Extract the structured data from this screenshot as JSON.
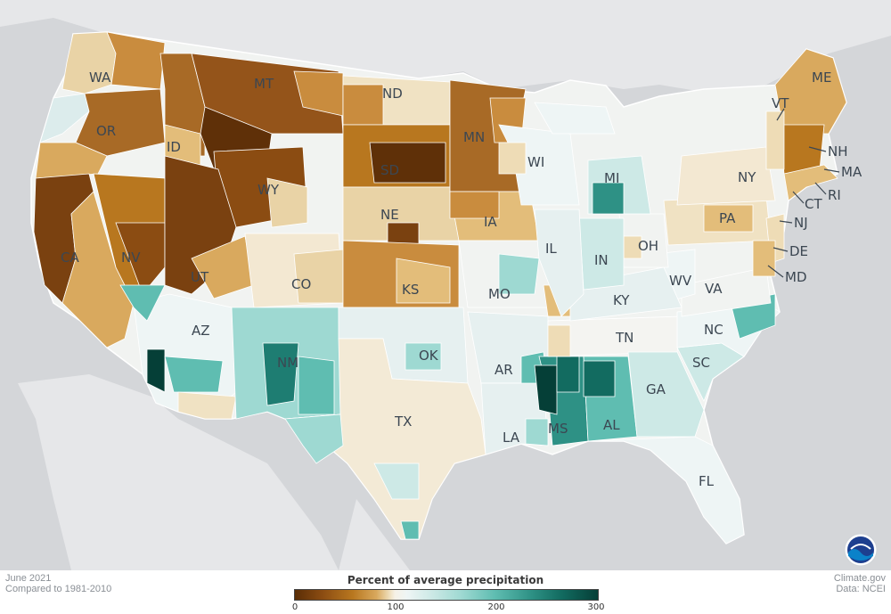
{
  "map": {
    "title": "Percent of average precipitation",
    "period": "June 2021",
    "baseline": "Compared to 1981-2010",
    "credit_site": "Climate.gov",
    "credit_data": "Data: NCEI",
    "legend": {
      "ticks": [
        "0",
        "100",
        "200",
        "300"
      ],
      "tick_values": [
        0,
        100,
        200,
        300
      ],
      "colors": {
        "very_dry": "#5a2d06",
        "dry": "#b8771f",
        "slightly_dry": "#eedcb6",
        "normal": "#f3f3f0",
        "slightly_wet": "#cde9e6",
        "wet": "#5fbdb1",
        "very_wet": "#053f37"
      }
    },
    "background_colors": {
      "land_outside": "#e6e7e9",
      "water": "#d4d6d9"
    },
    "states": {
      "WA": "WA",
      "OR": "OR",
      "CA": "CA",
      "ID": "ID",
      "NV": "NV",
      "MT": "MT",
      "WY": "WY",
      "UT": "UT",
      "AZ": "AZ",
      "CO": "CO",
      "NM": "NM",
      "ND": "ND",
      "SD": "SD",
      "NE": "NE",
      "KS": "KS",
      "OK": "OK",
      "TX": "TX",
      "MN": "MN",
      "IA": "IA",
      "MO": "MO",
      "AR": "AR",
      "LA": "LA",
      "WI": "WI",
      "IL": "IL",
      "MS": "MS",
      "MI": "MI",
      "IN": "IN",
      "KY": "KY",
      "TN": "TN",
      "AL": "AL",
      "OH": "OH",
      "GA": "GA",
      "FL": "FL",
      "SC": "SC",
      "NC": "NC",
      "VA": "VA",
      "WV": "WV",
      "PA": "PA",
      "NY": "NY",
      "VT": "VT",
      "NH": "NH",
      "ME": "ME",
      "MA": "MA",
      "RI": "RI",
      "CT": "CT",
      "NJ": "NJ",
      "DE": "DE",
      "MD": "MD"
    },
    "logo": "noaa-logo"
  }
}
